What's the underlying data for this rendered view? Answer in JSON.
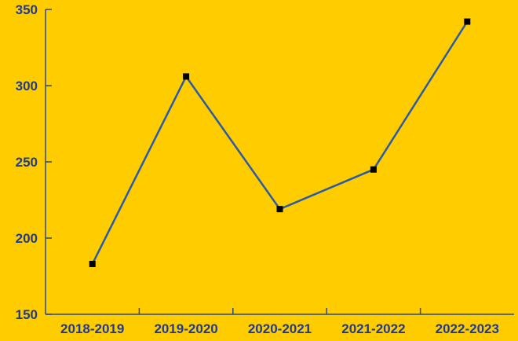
{
  "colors": {
    "background": "#FFCC00",
    "axis": "#2F4A7A",
    "line": "#2B5AA8",
    "marker": "#000000",
    "label": "#1F3A93"
  },
  "chart_data": {
    "type": "line",
    "title": "",
    "xlabel": "",
    "ylabel": "",
    "categories": [
      "2018-2019",
      "2019-2020",
      "2020-2021",
      "2021-2022",
      "2022-2023"
    ],
    "series": [
      {
        "values": [
          183,
          306,
          219,
          245,
          342
        ]
      }
    ],
    "ylim": [
      150,
      350
    ],
    "yticks": [
      150,
      200,
      250,
      300,
      350
    ],
    "grid": false,
    "legend": "none",
    "marker": "square"
  }
}
